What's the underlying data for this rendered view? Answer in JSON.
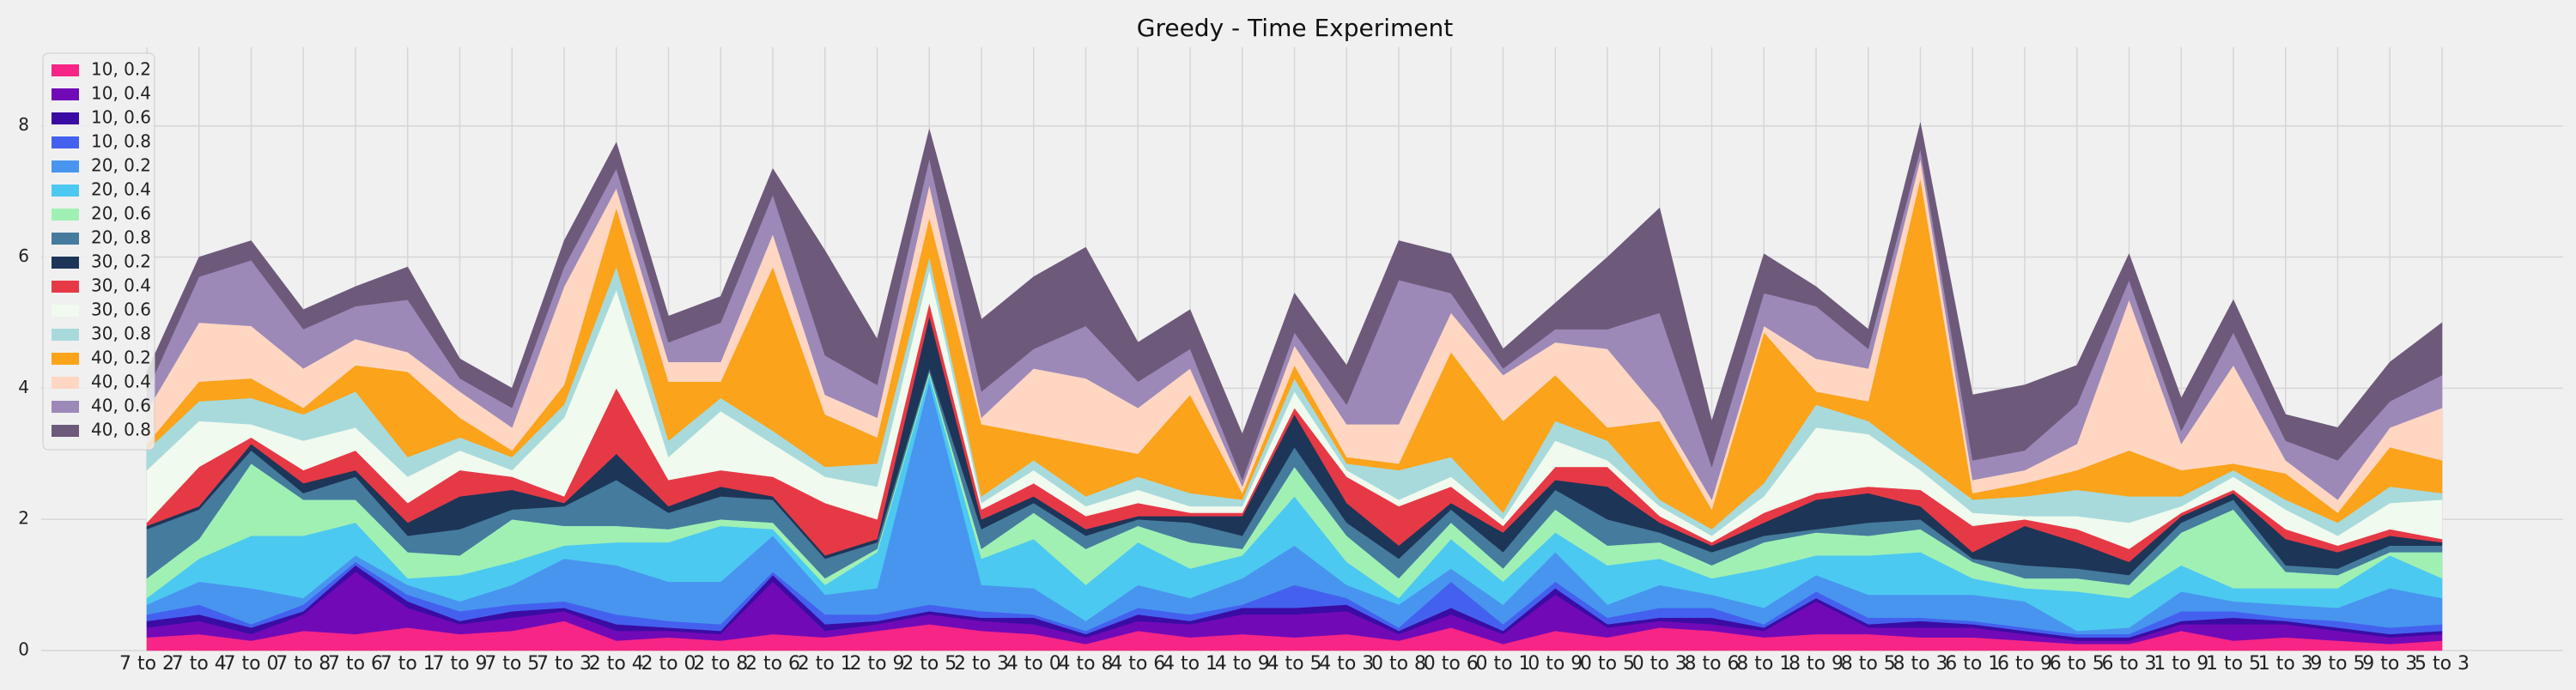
{
  "chart_data": {
    "type": "area",
    "stacked": true,
    "title": "Greedy - Time Experiment",
    "xlabel": "",
    "ylabel": "",
    "ylim": [
      0,
      9.2
    ],
    "yticks": [
      0,
      2,
      4,
      6,
      8
    ],
    "grid": true,
    "legend_position": "top-left",
    "background": "#f0f0f0",
    "categories": [
      "7 to 2",
      "7 to 4",
      "7 to 0",
      "7 to 8",
      "7 to 6",
      "7 to 1",
      "7 to 9",
      "7 to 5",
      "7 to 3",
      "2 to 4",
      "2 to 0",
      "2 to 8",
      "2 to 6",
      "2 to 1",
      "2 to 9",
      "2 to 5",
      "2 to 3",
      "4 to 0",
      "4 to 8",
      "4 to 6",
      "4 to 1",
      "4 to 9",
      "4 to 5",
      "4 to 3",
      "0 to 8",
      "0 to 6",
      "0 to 1",
      "0 to 9",
      "0 to 5",
      "0 to 3",
      "8 to 6",
      "8 to 1",
      "8 to 9",
      "8 to 5",
      "8 to 3",
      "6 to 1",
      "6 to 9",
      "6 to 5",
      "6 to 3",
      "1 to 9",
      "1 to 5",
      "1 to 3",
      "9 to 5",
      "9 to 3",
      "5 to 3"
    ],
    "series": [
      {
        "name": "10, 0.2",
        "color": "#f72585",
        "values": [
          0.2,
          0.25,
          0.15,
          0.3,
          0.25,
          0.35,
          0.25,
          0.3,
          0.45,
          0.15,
          0.2,
          0.15,
          0.25,
          0.2,
          0.3,
          0.4,
          0.3,
          0.25,
          0.1,
          0.3,
          0.2,
          0.25,
          0.2,
          0.25,
          0.15,
          0.35,
          0.1,
          0.3,
          0.2,
          0.35,
          0.3,
          0.2,
          0.25,
          0.25,
          0.2,
          0.2,
          0.15,
          0.1,
          0.1,
          0.3,
          0.15,
          0.2,
          0.15,
          0.1,
          0.15
        ]
      },
      {
        "name": "10, 0.4",
        "color": "#7209b7",
        "values": [
          0.15,
          0.2,
          0.1,
          0.25,
          0.95,
          0.3,
          0.15,
          0.2,
          0.15,
          0.15,
          0.1,
          0.1,
          0.8,
          0.1,
          0.1,
          0.15,
          0.15,
          0.15,
          0.1,
          0.15,
          0.2,
          0.3,
          0.35,
          0.35,
          0.1,
          0.2,
          0.15,
          0.55,
          0.15,
          0.1,
          0.1,
          0.1,
          0.5,
          0.1,
          0.15,
          0.15,
          0.1,
          0.05,
          0.05,
          0.1,
          0.25,
          0.2,
          0.15,
          0.1,
          0.1
        ]
      },
      {
        "name": "10, 0.6",
        "color": "#3a0ca3",
        "values": [
          0.1,
          0.1,
          0.1,
          0.05,
          0.1,
          0.1,
          0.05,
          0.1,
          0.05,
          0.1,
          0.05,
          0.05,
          0.1,
          0.1,
          0.05,
          0.05,
          0.05,
          0.1,
          0.05,
          0.1,
          0.05,
          0.1,
          0.1,
          0.1,
          0.05,
          0.1,
          0.05,
          0.1,
          0.05,
          0.05,
          0.1,
          0.05,
          0.05,
          0.05,
          0.1,
          0.05,
          0.05,
          0.05,
          0.05,
          0.05,
          0.1,
          0.05,
          0.05,
          0.05,
          0.05
        ]
      },
      {
        "name": "10, 0.8",
        "color": "#4361ee",
        "values": [
          0.1,
          0.15,
          0.05,
          0.1,
          0.05,
          0.1,
          0.15,
          0.1,
          0.1,
          0.15,
          0.1,
          0.1,
          0.05,
          0.15,
          0.1,
          0.1,
          0.1,
          0.05,
          0.05,
          0.1,
          0.1,
          0.05,
          0.35,
          0.1,
          0.05,
          0.4,
          0.1,
          0.1,
          0.1,
          0.15,
          0.15,
          0.05,
          0.1,
          0.1,
          0.05,
          0.05,
          0.05,
          0.05,
          0.05,
          0.15,
          0.1,
          0.05,
          0.1,
          0.1,
          0.1
        ]
      },
      {
        "name": "20, 0.2",
        "color": "#4895ef",
        "values": [
          0.15,
          0.35,
          0.55,
          0.1,
          0.1,
          0.15,
          0.15,
          0.3,
          0.65,
          0.75,
          0.6,
          0.65,
          0.55,
          0.3,
          0.4,
          3.4,
          0.4,
          0.4,
          0.15,
          0.35,
          0.25,
          0.4,
          0.6,
          0.2,
          0.35,
          0.2,
          0.3,
          0.45,
          0.2,
          0.35,
          0.2,
          0.25,
          0.25,
          0.35,
          0.35,
          0.4,
          0.4,
          0.05,
          0.1,
          0.3,
          0.15,
          0.2,
          0.2,
          0.6,
          0.4
        ]
      },
      {
        "name": "20, 0.4",
        "color": "#4cc9f0",
        "values": [
          0.1,
          0.35,
          0.8,
          0.95,
          0.5,
          0.1,
          0.4,
          0.35,
          0.2,
          0.35,
          0.6,
          0.85,
          0.1,
          0.15,
          0.55,
          0.1,
          0.4,
          0.75,
          0.55,
          0.65,
          0.45,
          0.35,
          0.75,
          0.35,
          0.1,
          0.45,
          0.35,
          0.3,
          0.6,
          0.4,
          0.25,
          0.6,
          0.3,
          0.6,
          0.65,
          0.25,
          0.2,
          0.6,
          0.45,
          0.4,
          0.2,
          0.25,
          0.3,
          0.5,
          0.3
        ]
      },
      {
        "name": "20, 0.6",
        "color": "#a0f0b4",
        "values": [
          0.3,
          0.3,
          1.1,
          0.55,
          0.35,
          0.4,
          0.3,
          0.65,
          0.3,
          0.25,
          0.2,
          0.1,
          0.1,
          0.1,
          0.05,
          0.05,
          0.15,
          0.4,
          0.55,
          0.25,
          0.4,
          0.1,
          0.45,
          0.4,
          0.3,
          0.25,
          0.2,
          0.35,
          0.3,
          0.25,
          0.2,
          0.4,
          0.35,
          0.3,
          0.35,
          0.25,
          0.15,
          0.2,
          0.2,
          0.5,
          1.2,
          0.25,
          0.2,
          0.05,
          0.4
        ]
      },
      {
        "name": "20, 0.8",
        "color": "#457b9d",
        "values": [
          0.75,
          0.45,
          0.2,
          0.1,
          0.35,
          0.25,
          0.4,
          0.15,
          0.3,
          0.7,
          0.25,
          0.35,
          0.35,
          0.3,
          0.1,
          0.05,
          0.3,
          0.15,
          0.2,
          0.1,
          0.3,
          0.2,
          0.3,
          0.2,
          0.3,
          0.2,
          0.25,
          0.3,
          0.4,
          0.15,
          0.2,
          0.1,
          0.05,
          0.2,
          0.15,
          0.05,
          0.2,
          0.15,
          0.15,
          0.15,
          0.15,
          0.1,
          0.1,
          0.1,
          0.1
        ]
      },
      {
        "name": "30, 0.2",
        "color": "#1d3557",
        "values": [
          0.05,
          0.05,
          0.1,
          0.15,
          0.1,
          0.2,
          0.5,
          0.3,
          0.05,
          0.4,
          0.1,
          0.15,
          0.05,
          0.05,
          0.05,
          0.8,
          0.15,
          0.1,
          0.1,
          0.05,
          0.1,
          0.3,
          0.5,
          0.3,
          0.2,
          0.1,
          0.3,
          0.15,
          0.5,
          0.15,
          0.1,
          0.2,
          0.45,
          0.45,
          0.2,
          0.1,
          0.6,
          0.4,
          0.2,
          0.1,
          0.1,
          0.4,
          0.25,
          0.15,
          0.05
        ]
      },
      {
        "name": "30, 0.4",
        "color": "#e63946",
        "values": [
          0.05,
          0.6,
          0.1,
          0.2,
          0.3,
          0.3,
          0.4,
          0.2,
          0.1,
          1.0,
          0.4,
          0.25,
          0.3,
          0.8,
          0.3,
          0.2,
          0.15,
          0.2,
          0.2,
          0.2,
          0.05,
          0.05,
          0.1,
          0.4,
          0.6,
          0.25,
          0.1,
          0.2,
          0.3,
          0.1,
          0.05,
          0.15,
          0.1,
          0.1,
          0.25,
          0.4,
          0.1,
          0.2,
          0.2,
          0.05,
          0.05,
          0.15,
          0.1,
          0.1,
          0.05
        ]
      },
      {
        "name": "30, 0.6",
        "color": "#f1faee",
        "values": [
          0.8,
          0.7,
          0.2,
          0.45,
          0.35,
          0.4,
          0.3,
          0.1,
          1.2,
          1.5,
          0.35,
          0.9,
          0.5,
          0.4,
          0.5,
          0.5,
          0.1,
          0.2,
          0.15,
          0.2,
          0.1,
          0.1,
          0.25,
          0.1,
          0.1,
          0.15,
          0.1,
          0.4,
          0.1,
          0.15,
          0.1,
          0.25,
          1.0,
          0.8,
          0.3,
          0.2,
          0.05,
          0.2,
          0.4,
          0.1,
          0.2,
          0.3,
          0.15,
          0.4,
          0.6
        ]
      },
      {
        "name": "30, 0.8",
        "color": "#a8dadc",
        "values": [
          0.3,
          0.3,
          0.4,
          0.4,
          0.55,
          0.3,
          0.2,
          0.2,
          0.2,
          0.35,
          0.25,
          0.2,
          0.2,
          0.15,
          0.35,
          0.2,
          0.1,
          0.15,
          0.15,
          0.2,
          0.2,
          0.1,
          0.2,
          0.1,
          0.45,
          0.3,
          0.1,
          0.3,
          0.3,
          0.1,
          0.1,
          0.2,
          0.35,
          0.2,
          0.15,
          0.2,
          0.3,
          0.4,
          0.4,
          0.15,
          0.1,
          0.15,
          0.2,
          0.25,
          0.1
        ]
      },
      {
        "name": "40, 0.2",
        "color": "#faa31b",
        "values": [
          0.1,
          0.3,
          0.3,
          0.1,
          0.4,
          1.3,
          0.3,
          0.1,
          0.3,
          0.9,
          0.9,
          0.25,
          2.5,
          0.8,
          0.4,
          0.6,
          1.1,
          0.4,
          0.8,
          0.35,
          1.5,
          0.1,
          0.2,
          0.1,
          0.1,
          1.6,
          1.4,
          0.7,
          0.2,
          1.2,
          0.3,
          2.3,
          0.2,
          0.3,
          4.3,
          0.1,
          0.2,
          0.3,
          0.7,
          0.4,
          0.1,
          0.4,
          0.15,
          0.6,
          0.5
        ]
      },
      {
        "name": "40, 0.4",
        "color": "#ffd6c2",
        "values": [
          0.5,
          0.9,
          0.8,
          0.6,
          0.4,
          0.3,
          0.4,
          0.35,
          1.5,
          0.3,
          0.3,
          0.3,
          0.5,
          0.3,
          0.3,
          0.5,
          0.1,
          1.0,
          1.0,
          0.7,
          0.4,
          0.1,
          0.3,
          0.5,
          0.6,
          0.6,
          0.7,
          0.5,
          1.2,
          0.15,
          0.15,
          0.1,
          0.5,
          0.5,
          0.3,
          0.2,
          0.2,
          0.4,
          2.3,
          0.4,
          1.5,
          0.2,
          0.2,
          0.3,
          0.8
        ]
      },
      {
        "name": "40, 0.6",
        "color": "#9c89b8",
        "values": [
          0.3,
          0.7,
          1.0,
          0.6,
          0.5,
          0.8,
          0.2,
          0.3,
          0.3,
          0.3,
          0.3,
          0.6,
          0.6,
          0.6,
          0.5,
          0.4,
          0.4,
          0.3,
          0.8,
          0.4,
          0.3,
          0.1,
          0.2,
          0.3,
          2.2,
          0.3,
          0.1,
          0.2,
          0.3,
          1.5,
          0.5,
          0.5,
          0.8,
          0.3,
          0.15,
          0.3,
          0.3,
          0.6,
          0.3,
          0.2,
          0.5,
          0.3,
          0.6,
          0.4,
          0.5
        ]
      },
      {
        "name": "40, 0.8",
        "color": "#6d597a",
        "values": [
          0.3,
          0.3,
          0.3,
          0.3,
          0.3,
          0.5,
          0.3,
          0.3,
          0.4,
          0.4,
          0.4,
          0.4,
          0.4,
          1.6,
          0.7,
          0.45,
          1.1,
          1.1,
          1.2,
          0.6,
          0.6,
          0.7,
          0.6,
          0.6,
          0.6,
          0.6,
          0.3,
          0.4,
          1.1,
          1.6,
          0.7,
          0.6,
          0.3,
          0.3,
          0.4,
          1.0,
          1.0,
          0.6,
          0.4,
          0.5,
          0.5,
          0.4,
          0.5,
          0.6,
          0.8
        ]
      }
    ]
  }
}
